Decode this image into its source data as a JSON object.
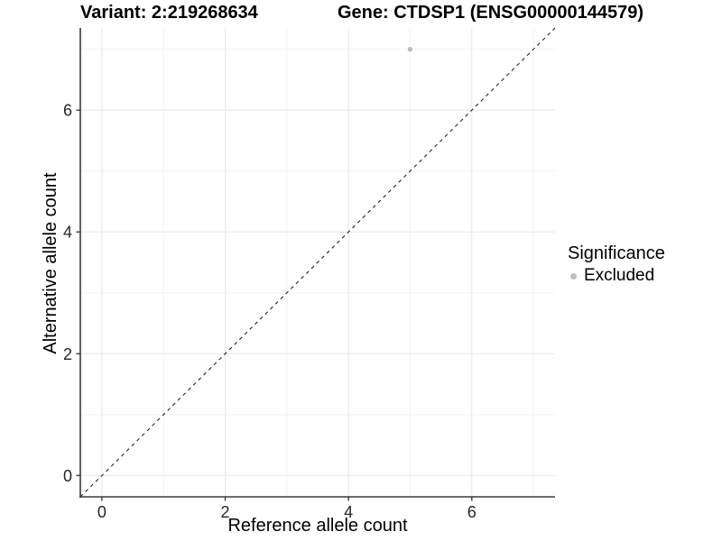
{
  "figure": {
    "background": "#ffffff"
  },
  "chart_data": {
    "type": "scatter",
    "titles": {
      "left": "Variant: 2:219268634",
      "right": "Gene: CTDSP1 (ENSG00000144579)"
    },
    "xlabel": "Reference allele count",
    "ylabel": "Alternative allele count",
    "xlim": [
      -0.35,
      7.35
    ],
    "ylim": [
      -0.35,
      7.35
    ],
    "x_ticks": [
      0,
      2,
      4,
      6
    ],
    "y_ticks": [
      0,
      2,
      4,
      6
    ],
    "grid_positions": [
      0,
      1,
      2,
      3,
      4,
      5,
      6,
      7
    ],
    "grid": true,
    "points": [
      {
        "x": 5,
        "y": 7,
        "significance": "Excluded"
      }
    ],
    "reference_line": {
      "type": "identity",
      "slope": 1,
      "intercept": 0,
      "linestyle": "dashed"
    },
    "legend": {
      "title": "Significance",
      "position": "right",
      "items": [
        {
          "label": "Excluded",
          "color": "#bdbdbd"
        }
      ]
    },
    "colors": {
      "point": "#bdbdbd",
      "grid_major": "#e8e8e8",
      "grid_minor": "#f0f0f0",
      "axis": "#3a3a3a",
      "reference_line": "#111111",
      "tick_label": "#262626",
      "title": "#000000"
    }
  }
}
